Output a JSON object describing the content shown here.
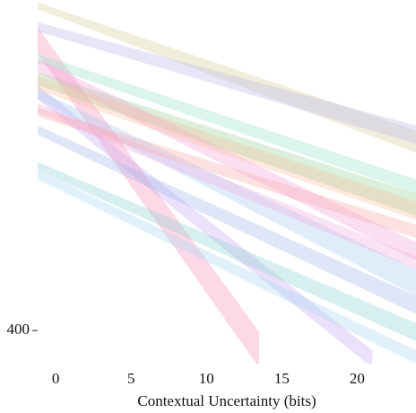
{
  "chart_data": {
    "type": "area",
    "x_label": "Contextual Uncertainty (bits)",
    "xlim": [
      -1.2,
      23.9
    ],
    "ylim": [
      360,
      800
    ],
    "xticks": [
      0,
      5,
      10,
      15,
      20
    ],
    "yticks": [
      400
    ],
    "opacity": 0.35,
    "series": [
      {
        "color": "#d8cc98",
        "x": [
          -1.2,
          23.9
        ],
        "upper": [
          797,
          642
        ],
        "lower": [
          789,
          615
        ]
      },
      {
        "color": "#b8b8ea",
        "x": [
          -1.2,
          23.9
        ],
        "upper": [
          773,
          648
        ],
        "lower": [
          762,
          626
        ]
      },
      {
        "color": "#f890b8",
        "x": [
          -1.2,
          13.5
        ],
        "upper": [
          767,
          398
        ],
        "lower": [
          735,
          355
        ]
      },
      {
        "color": "#c8a8f0",
        "x": [
          -1.2,
          21
        ],
        "upper": [
          697,
          376
        ],
        "lower": [
          680,
          355
        ]
      },
      {
        "color": "#98d098",
        "x": [
          -1.2,
          23.9
        ],
        "upper": [
          713,
          566
        ],
        "lower": [
          697,
          539
        ]
      },
      {
        "color": "#98e0c8",
        "x": [
          -1.2,
          23.9
        ],
        "upper": [
          735,
          583
        ],
        "lower": [
          724,
          566
        ]
      },
      {
        "color": "#f0a0d8",
        "x": [
          -1.2,
          23.9
        ],
        "upper": [
          729,
          507
        ],
        "lower": [
          713,
          485
        ]
      },
      {
        "color": "#f8c0a0",
        "x": [
          -1.2,
          23.9
        ],
        "upper": [
          708,
          556
        ],
        "lower": [
          691,
          534
        ]
      },
      {
        "color": "#a8c8f0",
        "x": [
          -1.2,
          23.9
        ],
        "upper": [
          691,
          474
        ],
        "lower": [
          680,
          442
        ]
      },
      {
        "color": "#f0b0e0",
        "x": [
          -1.2,
          23.9
        ],
        "upper": [
          675,
          490
        ],
        "lower": [
          664,
          474
        ]
      },
      {
        "color": "#a0b8e8",
        "x": [
          -1.2,
          23.9
        ],
        "upper": [
          648,
          442
        ],
        "lower": [
          637,
          420
        ]
      },
      {
        "color": "#90d0d0",
        "x": [
          -1.2,
          23.9
        ],
        "upper": [
          604,
          409
        ],
        "lower": [
          594,
          387
        ]
      },
      {
        "color": "#a8d8f0",
        "x": [
          -1.2,
          23.9
        ],
        "upper": [
          594,
          376
        ],
        "lower": [
          583,
          360
        ]
      },
      {
        "color": "#f8a8a8",
        "x": [
          -1.2,
          23.9
        ],
        "upper": [
          670,
          528
        ],
        "lower": [
          659,
          512
        ]
      }
    ]
  }
}
